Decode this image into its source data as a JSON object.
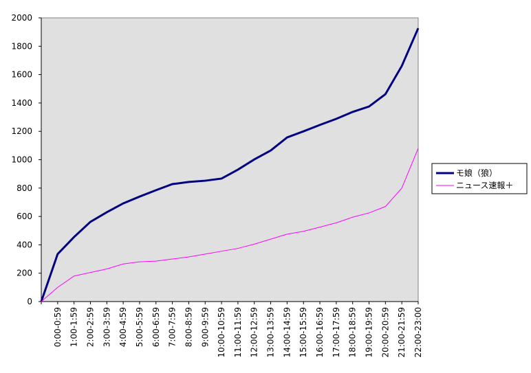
{
  "chart_data": {
    "type": "line",
    "categories": [
      null,
      "0:00-0:59",
      "1:00-1:59",
      "2:00-2:59",
      "3:00-3:59",
      "4:00-4:59",
      "5:00-5:59",
      "6:00-6:59",
      "7:00-7:59",
      "8:00-8:59",
      "9:00-9:59",
      "10:00-10:59",
      "11:00-11:59",
      "12:00-12:59",
      "13:00-13:59",
      "14:00-14:59",
      "15:00-15:59",
      "16:00-16:59",
      "17:00-17:59",
      "18:00-18:59",
      "19:00-19:59",
      "20:00-20:59",
      "21:00-21:59",
      "22:00-23:00"
    ],
    "series": [
      {
        "name": "モ娘（狼）",
        "color": "#000080",
        "values": [
          0,
          335,
          455,
          562,
          630,
          692,
          740,
          785,
          828,
          843,
          852,
          867,
          930,
          1002,
          1065,
          1157,
          1200,
          1245,
          1288,
          1337,
          1375,
          1462,
          1661,
          1927
        ]
      },
      {
        "name": "ニュース速報＋",
        "color": "#ff00ff",
        "values": [
          0,
          100,
          180,
          205,
          230,
          265,
          280,
          285,
          300,
          315,
          335,
          355,
          375,
          405,
          440,
          475,
          495,
          525,
          555,
          595,
          625,
          670,
          800,
          1080
        ]
      }
    ],
    "ylim": [
      0,
      2000
    ],
    "yticks": [
      0,
      200,
      400,
      600,
      800,
      1000,
      1200,
      1400,
      1600,
      1800,
      2000
    ],
    "grid": false,
    "legend": "right"
  }
}
